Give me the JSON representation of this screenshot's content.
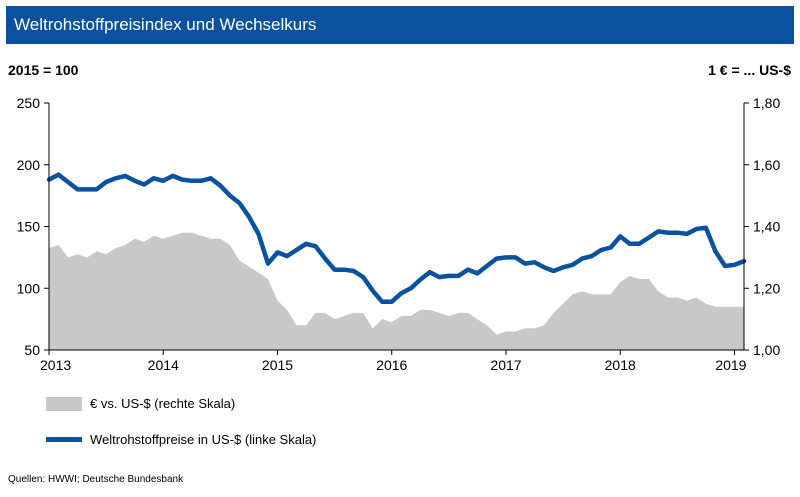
{
  "header": {
    "title": "Weltrohstoffpreisindex  und Wechselkurs"
  },
  "units": {
    "left": "2015 = 100",
    "right": "1 € = ... US-$"
  },
  "legend": {
    "area_label": "€ vs. US-$ (rechte Skala)",
    "line_label": "Weltrohstoffpreise in US-$ (linke Skala)"
  },
  "source": "Quellen: HWWI; Deutsche Bundesbank",
  "colors": {
    "title_bar": "#0a52a0",
    "line": "#0a52a0",
    "area": "#c8c8c8"
  },
  "chart_data": {
    "type": "line",
    "x_start": "2013-01",
    "frequency": "monthly",
    "xlim": [
      "2013-01",
      "2019-02"
    ],
    "x_tick_labels": [
      "2013",
      "2014",
      "2015",
      "2016",
      "2017",
      "2018",
      "2019"
    ],
    "y_left": {
      "ylim": [
        50,
        250
      ],
      "ticks": [
        "50",
        "100",
        "150",
        "200",
        "250"
      ]
    },
    "y_right": {
      "ylim": [
        1.0,
        1.8
      ],
      "ticks": [
        "1,00",
        "1,20",
        "1,40",
        "1,60",
        "1,80"
      ]
    },
    "grid": false,
    "legend_position": "bottom-left",
    "series": [
      {
        "name": "€ vs. US-$ (rechte Skala)",
        "axis": "right",
        "style": "area",
        "values": [
          1.33,
          1.34,
          1.3,
          1.31,
          1.3,
          1.32,
          1.31,
          1.33,
          1.34,
          1.36,
          1.35,
          1.37,
          1.36,
          1.37,
          1.38,
          1.38,
          1.37,
          1.36,
          1.36,
          1.34,
          1.29,
          1.27,
          1.25,
          1.23,
          1.16,
          1.13,
          1.08,
          1.08,
          1.12,
          1.12,
          1.1,
          1.11,
          1.12,
          1.12,
          1.07,
          1.1,
          1.09,
          1.11,
          1.11,
          1.13,
          1.13,
          1.12,
          1.11,
          1.12,
          1.12,
          1.1,
          1.08,
          1.05,
          1.06,
          1.06,
          1.07,
          1.07,
          1.08,
          1.12,
          1.15,
          1.18,
          1.19,
          1.18,
          1.18,
          1.18,
          1.22,
          1.24,
          1.23,
          1.23,
          1.19,
          1.17,
          1.17,
          1.16,
          1.17,
          1.15,
          1.14,
          1.14,
          1.14,
          1.14
        ]
      },
      {
        "name": "Weltrohstoffpreise in US-$ (linke Skala)",
        "axis": "left",
        "style": "line",
        "values": [
          188,
          192,
          186,
          180,
          180,
          180,
          186,
          189,
          191,
          187,
          184,
          189,
          187,
          191,
          188,
          187,
          187,
          189,
          183,
          175,
          169,
          158,
          144,
          120,
          129,
          126,
          131,
          136,
          134,
          124,
          115,
          115,
          114,
          109,
          98,
          89,
          89,
          96,
          100,
          107,
          113,
          109,
          110,
          110,
          115,
          112,
          118,
          124,
          125,
          125,
          120,
          121,
          117,
          114,
          117,
          119,
          124,
          126,
          131,
          133,
          142,
          136,
          136,
          141,
          146,
          145,
          145,
          144,
          148,
          149,
          130,
          118,
          119,
          122
        ]
      }
    ]
  }
}
